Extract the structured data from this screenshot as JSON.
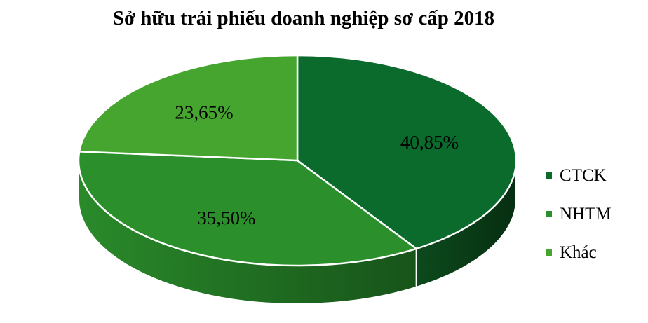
{
  "chart_data": {
    "type": "pie",
    "title": "Sở hữu trái phiếu doanh nghiệp sơ cấp 2018",
    "categories": [
      "CTCK",
      "NHTM",
      "Khác"
    ],
    "values": [
      40.85,
      35.5,
      23.65
    ],
    "labels": [
      "40,85%",
      "35,50%",
      "23,65%"
    ],
    "colors": [
      "#0a6b2c",
      "#2b8f2c",
      "#45a52f"
    ],
    "side_colors": [
      "#0b3b17",
      "#1f6a20",
      "#2f7f23"
    ],
    "legend": {
      "position": "right",
      "items": [
        "CTCK",
        "NHTM",
        "Khác"
      ]
    }
  }
}
